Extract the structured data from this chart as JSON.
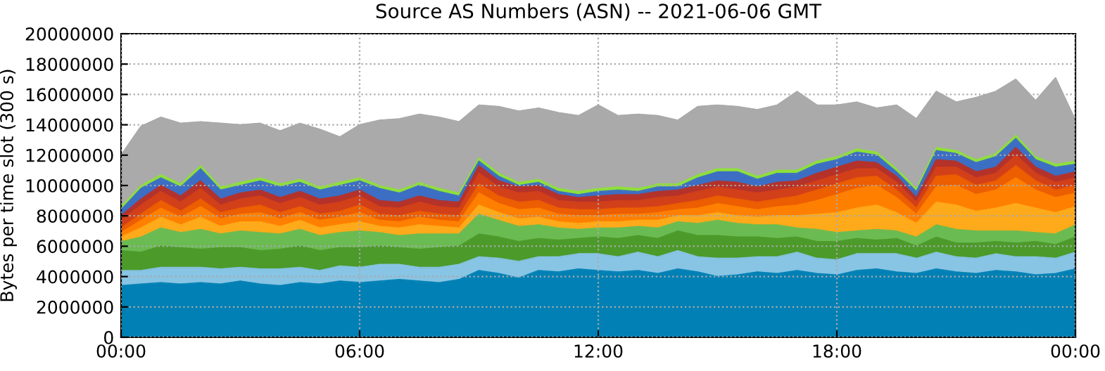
{
  "chart_data": {
    "type": "area",
    "stacked": true,
    "title": "Source AS Numbers (ASN) -- 2021-06-06 GMT",
    "ylabel": "Bytes per time slot (300 s)",
    "x": [
      0,
      0.5,
      1,
      1.5,
      2,
      2.5,
      3,
      3.5,
      4,
      4.5,
      5,
      5.5,
      6,
      6.5,
      7,
      7.5,
      8,
      8.5,
      9,
      9.5,
      10,
      10.5,
      11,
      11.5,
      12,
      12.5,
      13,
      13.5,
      14,
      14.5,
      15,
      15.5,
      16,
      16.5,
      17,
      17.5,
      18,
      18.5,
      19,
      19.5,
      20,
      20.5,
      21,
      21.5,
      22,
      22.5,
      23,
      23.5,
      24
    ],
    "xlim": [
      0,
      24
    ],
    "xticks": [
      {
        "value": 0,
        "label": "00:00"
      },
      {
        "value": 6,
        "label": "06:00"
      },
      {
        "value": 12,
        "label": "12:00"
      },
      {
        "value": 18,
        "label": "18:00"
      },
      {
        "value": 24,
        "label": "00:00"
      }
    ],
    "ylim": [
      0,
      20000000
    ],
    "yticks": [
      0,
      2000000,
      4000000,
      6000000,
      8000000,
      10000000,
      12000000,
      14000000,
      16000000,
      18000000,
      20000000
    ],
    "grid": true,
    "series": [
      {
        "color": "#0080b4",
        "values": [
          3400000,
          3500000,
          3600000,
          3500000,
          3600000,
          3500000,
          3700000,
          3500000,
          3400000,
          3600000,
          3500000,
          3700000,
          3600000,
          3700000,
          3800000,
          3700000,
          3600000,
          3800000,
          4400000,
          4200000,
          3900000,
          4400000,
          4300000,
          4500000,
          4400000,
          4300000,
          4400000,
          4200000,
          4500000,
          4300000,
          4000000,
          4100000,
          4300000,
          4200000,
          4400000,
          4200000,
          4100000,
          4400000,
          4500000,
          4300000,
          4200000,
          4500000,
          4300000,
          4200000,
          4400000,
          4300000,
          4100000,
          4200000,
          4500000
        ]
      },
      {
        "color": "#88c4e4",
        "values": [
          1000000,
          900000,
          1000000,
          1100000,
          1000000,
          1000000,
          900000,
          1000000,
          1100000,
          1000000,
          900000,
          1000000,
          1000000,
          1100000,
          1000000,
          900000,
          1000000,
          1000000,
          900000,
          1000000,
          1100000,
          900000,
          1000000,
          1000000,
          1100000,
          1000000,
          1200000,
          1100000,
          1200000,
          1000000,
          1200000,
          1100000,
          1000000,
          1100000,
          1200000,
          1000000,
          1000000,
          1100000,
          1000000,
          1200000,
          1000000,
          1100000,
          1000000,
          1000000,
          1100000,
          1000000,
          1200000,
          1000000,
          1100000
        ]
      },
      {
        "color": "#4c9a2a",
        "values": [
          1300000,
          1200000,
          1400000,
          1300000,
          1200000,
          1400000,
          1300000,
          1200000,
          1300000,
          1400000,
          1300000,
          1200000,
          1300000,
          1200000,
          1100000,
          1200000,
          1300000,
          1200000,
          1500000,
          1400000,
          1300000,
          1200000,
          1100000,
          1000000,
          1100000,
          1200000,
          1100000,
          1200000,
          1300000,
          1400000,
          1500000,
          1400000,
          1300000,
          1200000,
          1000000,
          1100000,
          1200000,
          1000000,
          900000,
          1000000,
          800000,
          1000000,
          900000,
          1000000,
          800000,
          900000,
          1000000,
          900000,
          1000000
        ]
      },
      {
        "color": "#6abb52",
        "values": [
          600000,
          1000000,
          1200000,
          1000000,
          1300000,
          900000,
          1100000,
          1200000,
          1000000,
          1100000,
          1000000,
          1000000,
          1100000,
          900000,
          800000,
          1000000,
          900000,
          800000,
          1300000,
          1100000,
          1000000,
          900000,
          800000,
          600000,
          600000,
          700000,
          600000,
          700000,
          600000,
          800000,
          1000000,
          900000,
          800000,
          900000,
          600000,
          800000,
          600000,
          500000,
          700000,
          500000,
          600000,
          800000,
          900000,
          800000,
          700000,
          800000,
          600000,
          700000,
          800000
        ]
      },
      {
        "color": "#ffaa1a",
        "values": [
          300000,
          600000,
          700000,
          500000,
          800000,
          500000,
          600000,
          700000,
          500000,
          600000,
          500000,
          500000,
          600000,
          400000,
          500000,
          600000,
          500000,
          400000,
          600000,
          500000,
          500000,
          500000,
          400000,
          400000,
          400000,
          400000,
          400000,
          500000,
          400000,
          500000,
          500000,
          500000,
          500000,
          600000,
          800000,
          1000000,
          1300000,
          1500000,
          1600000,
          1200000,
          900000,
          1500000,
          1600000,
          1300000,
          1500000,
          1800000,
          1600000,
          1400000,
          1200000
        ]
      },
      {
        "color": "#ff8000",
        "values": [
          300000,
          500000,
          600000,
          500000,
          700000,
          500000,
          500000,
          600000,
          500000,
          500000,
          500000,
          500000,
          600000,
          400000,
          400000,
          500000,
          400000,
          400000,
          800000,
          600000,
          600000,
          600000,
          500000,
          500000,
          400000,
          500000,
          400000,
          500000,
          400000,
          500000,
          600000,
          600000,
          500000,
          600000,
          700000,
          900000,
          1200000,
          1300000,
          1300000,
          1000000,
          600000,
          1000000,
          1300000,
          1100000,
          1200000,
          1700000,
          1200000,
          1000000,
          900000
        ]
      },
      {
        "color": "#ec5e00",
        "values": [
          300000,
          400000,
          500000,
          400000,
          500000,
          400000,
          400000,
          500000,
          400000,
          400000,
          400000,
          400000,
          500000,
          400000,
          400000,
          400000,
          400000,
          400000,
          600000,
          500000,
          500000,
          500000,
          400000,
          400000,
          400000,
          400000,
          400000,
          400000,
          400000,
          500000,
          500000,
          500000,
          500000,
          500000,
          600000,
          700000,
          700000,
          700000,
          600000,
          500000,
          400000,
          700000,
          700000,
          600000,
          600000,
          800000,
          600000,
          500000,
          500000
        ]
      },
      {
        "color": "#d2401a",
        "values": [
          500000,
          600000,
          600000,
          600000,
          700000,
          500000,
          600000,
          600000,
          600000,
          600000,
          600000,
          600000,
          600000,
          500000,
          500000,
          600000,
          500000,
          500000,
          700000,
          600000,
          600000,
          600000,
          500000,
          500000,
          500000,
          500000,
          500000,
          600000,
          500000,
          600000,
          600000,
          600000,
          600000,
          600000,
          600000,
          600000,
          600000,
          600000,
          500000,
          500000,
          400000,
          600000,
          500000,
          500000,
          500000,
          700000,
          500000,
          500000,
          500000
        ]
      },
      {
        "color": "#b4322a",
        "values": [
          300000,
          400000,
          400000,
          400000,
          500000,
          400000,
          400000,
          400000,
          400000,
          400000,
          400000,
          400000,
          400000,
          400000,
          400000,
          400000,
          400000,
          400000,
          500000,
          400000,
          400000,
          400000,
          400000,
          300000,
          400000,
          400000,
          400000,
          400000,
          400000,
          400000,
          400000,
          500000,
          400000,
          500000,
          400000,
          500000,
          500000,
          500000,
          400000,
          400000,
          300000,
          500000,
          400000,
          400000,
          400000,
          500000,
          400000,
          400000,
          400000
        ]
      },
      {
        "color": "#3c6ec4",
        "values": [
          400000,
          700000,
          500000,
          600000,
          800000,
          600000,
          500000,
          600000,
          700000,
          600000,
          600000,
          700000,
          600000,
          800000,
          600000,
          700000,
          600000,
          400000,
          300000,
          300000,
          100000,
          200000,
          200000,
          200000,
          300000,
          300000,
          200000,
          300000,
          200000,
          500000,
          600000,
          700000,
          500000,
          600000,
          500000,
          600000,
          500000,
          600000,
          500000,
          300000,
          400000,
          600000,
          500000,
          600000,
          700000,
          600000,
          500000,
          600000,
          500000
        ]
      },
      {
        "color": "#8ee03a",
        "values": [
          200000,
          200000,
          200000,
          200000,
          200000,
          200000,
          200000,
          200000,
          200000,
          200000,
          200000,
          200000,
          200000,
          200000,
          200000,
          200000,
          200000,
          200000,
          200000,
          200000,
          200000,
          200000,
          200000,
          200000,
          200000,
          200000,
          200000,
          200000,
          200000,
          200000,
          200000,
          200000,
          200000,
          200000,
          200000,
          200000,
          200000,
          200000,
          200000,
          200000,
          200000,
          200000,
          200000,
          200000,
          200000,
          200000,
          200000,
          200000,
          200000
        ]
      },
      {
        "color": "#aaaaaa",
        "values": [
          3400000,
          3900000,
          3800000,
          4000000,
          2900000,
          4200000,
          3800000,
          3600000,
          3500000,
          3700000,
          3800000,
          3000000,
          3500000,
          4300000,
          4700000,
          4500000,
          4700000,
          4700000,
          3500000,
          4400000,
          4700000,
          4700000,
          5000000,
          5000000,
          5500000,
          4700000,
          4900000,
          4500000,
          4200000,
          4500000,
          4200000,
          4100000,
          4400000,
          4300000,
          5200000,
          3700000,
          3400000,
          3100000,
          2900000,
          4200000,
          4600000,
          3700000,
          3200000,
          4100000,
          4100000,
          3700000,
          3700000,
          5700000,
          2700000
        ]
      }
    ]
  }
}
